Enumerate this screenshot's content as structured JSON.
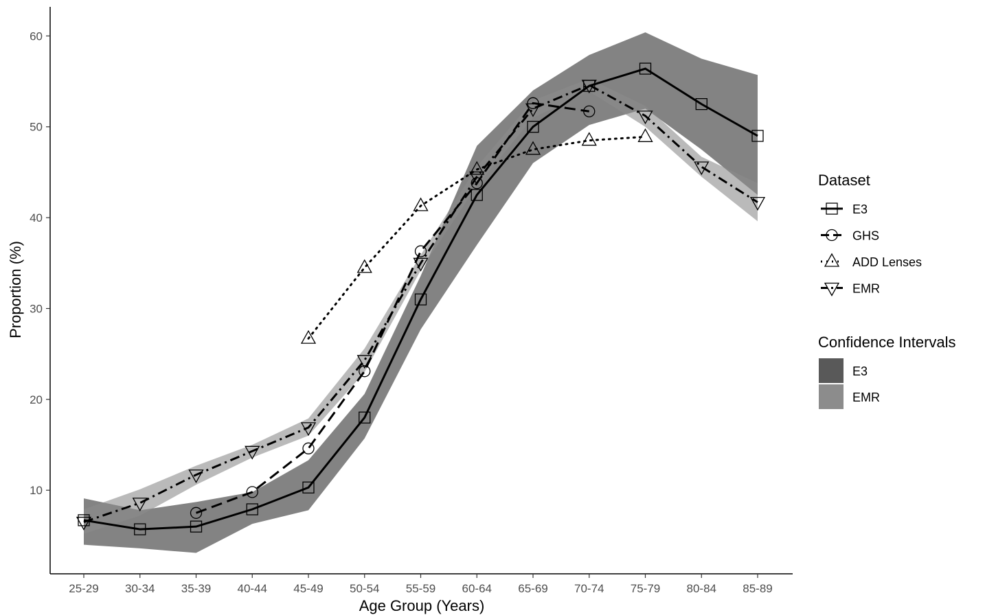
{
  "chart_data": {
    "type": "line",
    "xlabel": "Age Group (Years)",
    "ylabel": "Proportion (%)",
    "categories": [
      "25-29",
      "30-34",
      "35-39",
      "40-44",
      "45-49",
      "50-54",
      "55-59",
      "60-64",
      "65-69",
      "70-74",
      "75-79",
      "80-84",
      "85-89"
    ],
    "yticks": [
      10,
      20,
      30,
      40,
      50,
      60
    ],
    "ylim": [
      0.8,
      63.2
    ],
    "grid": false,
    "legend_placement": "right",
    "series": [
      {
        "name": "E3",
        "linestyle": "solid",
        "marker": "square",
        "values": [
          6.7,
          5.7,
          6.0,
          7.9,
          10.3,
          18.0,
          31.0,
          42.5,
          50.0,
          54.5,
          56.4,
          52.5,
          49.0
        ]
      },
      {
        "name": "GHS",
        "linestyle": "dashed",
        "marker": "circle",
        "values": [
          null,
          null,
          7.5,
          9.8,
          14.6,
          23.1,
          36.3,
          43.8,
          52.6,
          51.7,
          null,
          null,
          null
        ]
      },
      {
        "name": "ADD Lenses",
        "linestyle": "dotted",
        "marker": "triangle-up",
        "values": [
          null,
          null,
          null,
          null,
          26.7,
          34.5,
          41.3,
          45.3,
          47.5,
          48.5,
          48.9,
          null,
          null
        ]
      },
      {
        "name": "EMR",
        "linestyle": "dashdot",
        "marker": "triangle-down",
        "values": [
          6.5,
          8.6,
          11.7,
          14.3,
          16.9,
          24.3,
          35.0,
          44.5,
          52.0,
          54.6,
          51.2,
          45.6,
          41.7
        ]
      }
    ],
    "confidence_intervals": [
      {
        "name": "E3",
        "color": "#595959",
        "opacity": 0.75,
        "lower": [
          4.0,
          3.6,
          3.1,
          6.3,
          7.8,
          15.7,
          27.7,
          37.0,
          46.0,
          50.2,
          52.0,
          47.5,
          42.5
        ],
        "upper": [
          9.1,
          7.8,
          8.7,
          9.8,
          13.3,
          20.6,
          33.6,
          47.9,
          54.0,
          57.9,
          60.4,
          57.5,
          55.7
        ]
      },
      {
        "name": "EMR",
        "color": "#8c8c8c",
        "opacity": 0.6,
        "lower": [
          5.2,
          7.2,
          10.6,
          13.6,
          16.0,
          23.0,
          34.2,
          43.5,
          51.0,
          53.9,
          50.0,
          44.5,
          39.6
        ],
        "upper": [
          7.9,
          10.1,
          12.7,
          15.0,
          17.9,
          25.6,
          35.9,
          45.6,
          52.9,
          55.3,
          52.3,
          46.7,
          43.8
        ]
      }
    ]
  },
  "legend": {
    "dataset_title": "Dataset",
    "ci_title": "Confidence Intervals",
    "dataset_items": [
      "E3",
      "GHS",
      "ADD Lenses",
      "EMR"
    ],
    "ci_items": [
      "E3",
      "EMR"
    ],
    "ci_colors": [
      "#595959",
      "#8c8c8c"
    ]
  },
  "colors": {
    "line": "#000000",
    "marker_fill": "none",
    "axis": "#000000",
    "tick_text": "#4d4d4d"
  }
}
